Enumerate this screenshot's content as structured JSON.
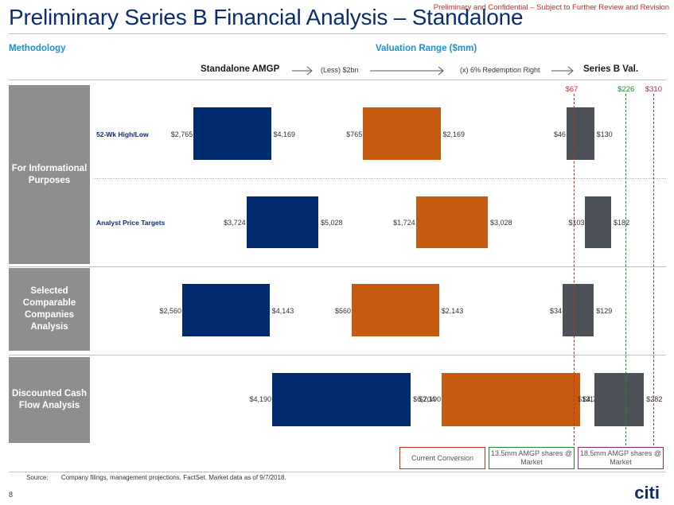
{
  "header": {
    "confidential": "Preliminary and Confidential – Subject to Further Review and Revision",
    "title": "Preliminary Series B Financial Analysis – Standalone"
  },
  "sections": {
    "methodology": "Methodology",
    "valuation_range": "Valuation Range ($mm)"
  },
  "flow": {
    "standalone": "Standalone AMGP",
    "less": "(Less) $2bn",
    "times": "(x) 6% Redemption Right",
    "series_b": "Series B Val."
  },
  "colors": {
    "navy": "#002b6e",
    "orange": "#c55a11",
    "gray": "#4d5258",
    "group_label": "#8e8e8e",
    "red": "#d9261c",
    "green": "#1e8a2e",
    "purple": "#9b2a6a"
  },
  "chart_data": {
    "type": "bar",
    "subtype": "football-field",
    "groups": [
      {
        "label": "For Informational Purposes",
        "rows": [
          0,
          1
        ]
      },
      {
        "label": "Selected Comparable Companies Analysis",
        "rows": [
          2
        ]
      },
      {
        "label": "Discounted Cash Flow Analysis",
        "rows": [
          3
        ]
      }
    ],
    "rows": [
      {
        "label": "52-Wk High/Low",
        "standalone": {
          "low": 2765,
          "high": 4169,
          "low_label": "$2,765",
          "high_label": "$4,169"
        },
        "less_2bn": {
          "low": 765,
          "high": 2169,
          "low_label": "$765",
          "high_label": "$2,169"
        },
        "series_b": {
          "low": 46,
          "high": 130,
          "low_label": "$46",
          "high_label": "$130"
        }
      },
      {
        "label": "Analyst Price Targets",
        "standalone": {
          "low": 3724,
          "high": 5028,
          "low_label": "$3,724",
          "high_label": "$5,028"
        },
        "less_2bn": {
          "low": 1724,
          "high": 3028,
          "low_label": "$1,724",
          "high_label": "$3,028"
        },
        "series_b": {
          "low": 103,
          "high": 182,
          "low_label": "$103",
          "high_label": "$182"
        }
      },
      {
        "label": "",
        "standalone": {
          "low": 2560,
          "high": 4143,
          "low_label": "$2,560",
          "high_label": "$4,143"
        },
        "less_2bn": {
          "low": 560,
          "high": 2143,
          "low_label": "$560",
          "high_label": "$2,143"
        },
        "series_b": {
          "low": 34,
          "high": 129,
          "low_label": "$34",
          "high_label": "$129"
        }
      },
      {
        "label": "",
        "standalone": {
          "low": 4190,
          "high": 6704,
          "low_label": "$4,190",
          "high_label": "$6,704"
        },
        "less_2bn": {
          "low": 2190,
          "high": 4704,
          "low_label": "$2,190",
          "high_label": "$4,704"
        },
        "series_b": {
          "low": 131,
          "high": 282,
          "low_label": "$131",
          "high_label": "$282"
        }
      }
    ],
    "reference_lines": [
      {
        "value": 67,
        "label": "$67",
        "legend": "Current Conversion",
        "color": "#d9261c"
      },
      {
        "value": 226,
        "label": "$226",
        "legend": "13.5mm AMGP shares @ Market",
        "color": "#1e8a2e"
      },
      {
        "value": 310,
        "label": "$310",
        "legend": "18.5mm AMGP shares @ Market",
        "color": "#9b2a6a"
      }
    ]
  },
  "footer": {
    "source_label": "Source:",
    "source_text": "Company filings, management projections, FactSet. Market data as of 9/7/2018.",
    "page_number": "8",
    "logo": "citi"
  }
}
